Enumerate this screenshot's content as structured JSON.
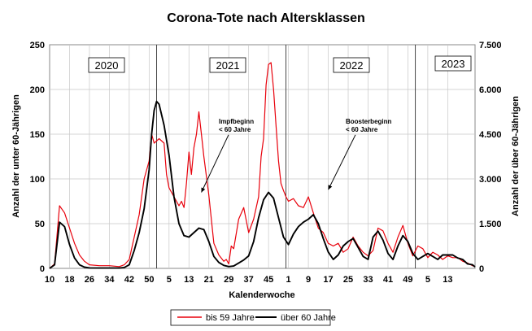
{
  "chart_data": {
    "type": "line",
    "title": "Corona-Tote nach Altersklassen",
    "xlabel": "Kalenderwoche",
    "ylabel_left": "Anzahl der unter 60-Jährigen",
    "ylabel_right": "Anzahl der über 60-Jährigen",
    "ylim_left": [
      0,
      250
    ],
    "ylim_right": [
      0,
      7500
    ],
    "yticks_left": [
      "0",
      "50",
      "100",
      "150",
      "200",
      "250"
    ],
    "yticks_right": [
      "0",
      "1.500",
      "3.000",
      "4.500",
      "6.000",
      "7.500"
    ],
    "xticks": [
      "10",
      "18",
      "26",
      "34",
      "42",
      "50",
      "5",
      "13",
      "21",
      "29",
      "37",
      "45",
      "1",
      "9",
      "17",
      "25",
      "33",
      "41",
      "49",
      "5",
      "13"
    ],
    "grid": true,
    "legend_position": "bottom",
    "year_labels": [
      "2020",
      "2021",
      "2022",
      "2023"
    ],
    "year_dividers": [
      53,
      105,
      157
    ],
    "annotations": [
      {
        "lines": [
          "Impfbeginn",
          "< 60 Jahre"
        ],
        "text_x": 78,
        "text_y": 162,
        "tip_x": 71,
        "tip_y": 85
      },
      {
        "lines": [
          "Boosterbeginn",
          "< 60 Jahre"
        ],
        "text_x": 129,
        "text_y": 162,
        "tip_x": 122,
        "tip_y": 88
      }
    ],
    "series": [
      {
        "name": "bis 59 Jahre",
        "axis": "left",
        "color": "#e8000b",
        "x": [
          10,
          12,
          14,
          16,
          18,
          20,
          22,
          24,
          26,
          30,
          34,
          38,
          40,
          42,
          44,
          46,
          48,
          50,
          51,
          52,
          54,
          56,
          57,
          58,
          60,
          62,
          63,
          64,
          65,
          66,
          67,
          68,
          69,
          70,
          71,
          72,
          74,
          76,
          78,
          80,
          81,
          82,
          83,
          84,
          86,
          88,
          90,
          92,
          94,
          95,
          96,
          97,
          98,
          99,
          100,
          101,
          102,
          103,
          104,
          105,
          106,
          108,
          110,
          112,
          114,
          116,
          118,
          120,
          122,
          124,
          126,
          128,
          130,
          132,
          134,
          136,
          138,
          140,
          142,
          144,
          146,
          148,
          150,
          152,
          154,
          156,
          158,
          160,
          162,
          164,
          166,
          168,
          170,
          172,
          174,
          176,
          178,
          180,
          181
        ],
        "values": [
          0,
          5,
          70,
          62,
          45,
          28,
          15,
          8,
          4,
          3,
          3,
          2,
          4,
          10,
          35,
          60,
          100,
          120,
          150,
          140,
          145,
          140,
          105,
          90,
          80,
          70,
          75,
          68,
          95,
          130,
          105,
          135,
          150,
          175,
          150,
          125,
          82,
          28,
          15,
          8,
          10,
          5,
          25,
          22,
          55,
          68,
          40,
          55,
          80,
          125,
          145,
          205,
          228,
          230,
          200,
          160,
          120,
          95,
          87,
          80,
          75,
          78,
          70,
          68,
          80,
          62,
          45,
          40,
          28,
          25,
          28,
          18,
          22,
          35,
          25,
          18,
          14,
          20,
          45,
          42,
          28,
          18,
          35,
          48,
          28,
          14,
          25,
          22,
          12,
          18,
          15,
          10,
          14,
          12,
          12,
          8,
          6,
          3,
          2
        ]
      },
      {
        "name": "über 60 Jahre",
        "axis": "right",
        "color": "#000000",
        "x": [
          10,
          12,
          14,
          16,
          18,
          20,
          22,
          24,
          26,
          30,
          34,
          38,
          40,
          42,
          44,
          46,
          48,
          50,
          51,
          52,
          53,
          54,
          56,
          58,
          60,
          62,
          64,
          66,
          68,
          70,
          72,
          74,
          76,
          78,
          80,
          82,
          84,
          86,
          88,
          90,
          92,
          94,
          96,
          98,
          100,
          102,
          104,
          106,
          108,
          110,
          112,
          114,
          116,
          118,
          120,
          122,
          124,
          126,
          128,
          130,
          132,
          134,
          136,
          138,
          140,
          142,
          144,
          146,
          148,
          150,
          152,
          154,
          156,
          158,
          160,
          162,
          164,
          166,
          168,
          170,
          172,
          174,
          176,
          178,
          180,
          181
        ],
        "values": [
          0,
          120,
          1550,
          1400,
          800,
          350,
          120,
          40,
          15,
          10,
          10,
          10,
          30,
          120,
          600,
          1200,
          2000,
          3300,
          4500,
          5300,
          5600,
          5500,
          4800,
          3800,
          2400,
          1500,
          1100,
          1050,
          1200,
          1350,
          1300,
          900,
          400,
          200,
          100,
          60,
          80,
          180,
          280,
          420,
          900,
          1700,
          2300,
          2550,
          2350,
          1700,
          1050,
          800,
          1150,
          1400,
          1550,
          1650,
          1800,
          1500,
          1000,
          550,
          300,
          450,
          750,
          900,
          1000,
          700,
          400,
          300,
          1050,
          1250,
          950,
          500,
          300,
          750,
          1100,
          900,
          500,
          300,
          400,
          500,
          400,
          300,
          450,
          450,
          450,
          350,
          300,
          150,
          120,
          50
        ]
      }
    ]
  },
  "legend": {
    "label_red": "bis 59 Jahre",
    "label_black": "über 60 Jahre"
  }
}
